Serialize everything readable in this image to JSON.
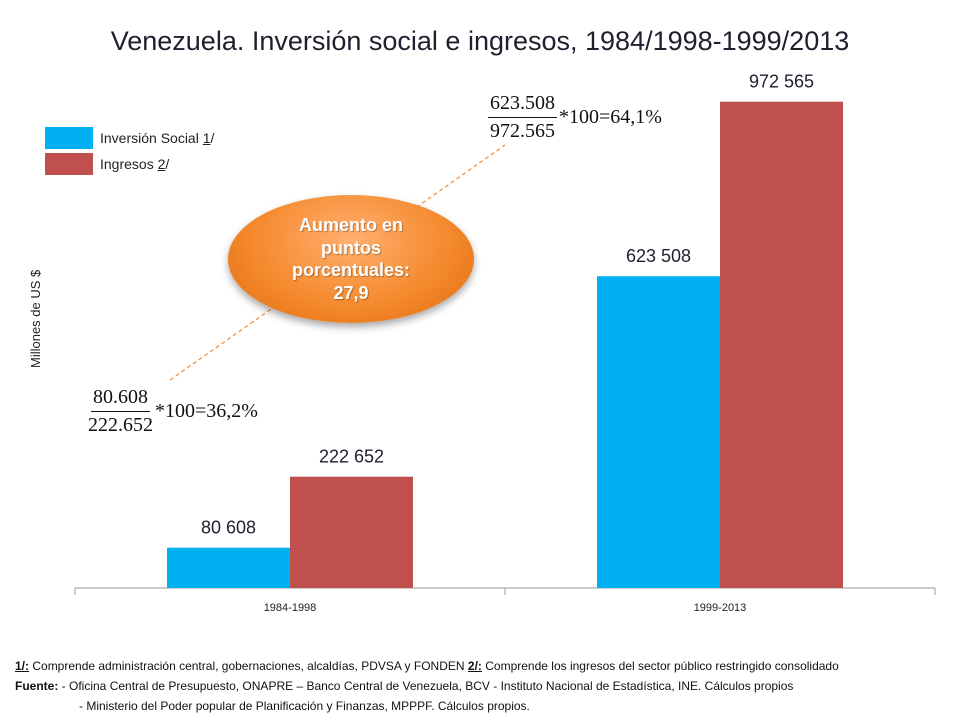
{
  "title": "Venezuela. Inversión social e ingresos, 1984/1998-1999/2013",
  "legend": [
    {
      "label_pre": "Inversión Social ",
      "label_ref": "1",
      "label_post": "/",
      "color": "#00b0f0"
    },
    {
      "label_pre": "Ingresos ",
      "label_ref": "2",
      "label_post": "/",
      "color": "#c0504d"
    }
  ],
  "ylabel": "Millones de US $",
  "bubble_text": "Aumento en puntos porcentuales: 27,9",
  "formula_left": {
    "numerator": "80.608",
    "denominator": "222.652",
    "rest": "*100=36,2%"
  },
  "formula_right": {
    "numerator": "623.508",
    "denominator": "972.565",
    "rest": "*100=64,1%"
  },
  "chart_data": {
    "type": "bar",
    "title": "Venezuela. Inversión social e ingresos, 1984/1998-1999/2013",
    "xlabel": "",
    "ylabel": "Millones de US $",
    "categories": [
      "1984-1998",
      "1999-2013"
    ],
    "series": [
      {
        "name": "Inversión Social 1/",
        "color": "#00b0f0",
        "values": [
          80608,
          623508
        ],
        "labels": [
          "80 608",
          "623 508"
        ]
      },
      {
        "name": "Ingresos 2/",
        "color": "#c0504d",
        "values": [
          222652,
          972565
        ],
        "labels": [
          "222 652",
          "972 565"
        ]
      }
    ],
    "ylim": [
      0,
      1000000
    ],
    "grid": false,
    "legend_position": "top-left"
  },
  "notes": {
    "n1_ref": "1/:",
    "n1_text": " Comprende administración central, gobernaciones,  alcaldías, PDVSA y FONDEN  ",
    "n2_ref": "2/:",
    "n2_text": " Comprende los ingresos del sector público restringido consolidado",
    "source_label": "Fuente:",
    "source_line1": " - Oficina Central de Presupuesto, ONAPRE – Banco Central de Venezuela, BCV  - Instituto Nacional de Estadística, INE. Cálculos propios",
    "source_line2": "- Ministerio del Poder popular de Planificación y Finanzas, MPPPF. Cálculos propios."
  }
}
